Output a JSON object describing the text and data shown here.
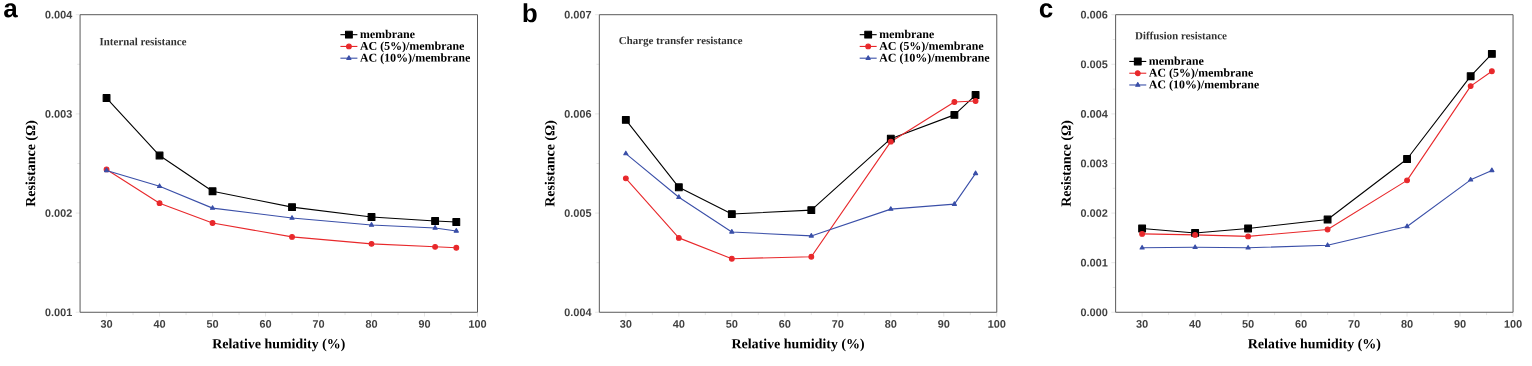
{
  "chart_data": [
    {
      "type": "line",
      "title": "a",
      "xlabel": "Relative humidity (%)",
      "ylabel": "Resistance (Ω)",
      "annotations": [
        "Internal resistance"
      ],
      "x": [
        30,
        40,
        50,
        65,
        80,
        92,
        96
      ],
      "xlim": [
        25,
        100
      ],
      "xticks": [
        30,
        40,
        50,
        60,
        70,
        80,
        90,
        100
      ],
      "ylim": [
        0.001,
        0.004
      ],
      "yticks": [
        0.001,
        0.002,
        0.003,
        0.004
      ],
      "legend": "top right",
      "series": [
        {
          "name": "membrane",
          "color": "#000000",
          "marker": "square",
          "values": [
            0.00316,
            0.00258,
            0.00222,
            0.00206,
            0.00196,
            0.00192,
            0.00191
          ]
        },
        {
          "name": "AC (5%)/membrane",
          "color": "#e8282b",
          "marker": "circle",
          "values": [
            0.00244,
            0.0021,
            0.0019,
            0.00176,
            0.00169,
            0.00166,
            0.00165
          ]
        },
        {
          "name": "AC (10%)/membrane",
          "color": "#3a4fa8",
          "marker": "triangle",
          "values": [
            0.00243,
            0.00227,
            0.00205,
            0.00195,
            0.00188,
            0.00185,
            0.00182
          ]
        }
      ]
    },
    {
      "type": "line",
      "title": "b",
      "xlabel": "Relative humidity (%)",
      "ylabel": "Resistance (Ω)",
      "annotations": [
        "Charge transfer resistance"
      ],
      "x": [
        30,
        40,
        50,
        65,
        80,
        92,
        96
      ],
      "xlim": [
        25,
        100
      ],
      "xticks": [
        30,
        40,
        50,
        60,
        70,
        80,
        90,
        100
      ],
      "ylim": [
        0.004,
        0.007
      ],
      "yticks": [
        0.004,
        0.005,
        0.006,
        0.007
      ],
      "legend": "top right",
      "series": [
        {
          "name": "membrane",
          "color": "#000000",
          "marker": "square",
          "values": [
            0.00594,
            0.00526,
            0.00499,
            0.00503,
            0.00575,
            0.00599,
            0.00619
          ]
        },
        {
          "name": "AC (5%)/membrane",
          "color": "#e8282b",
          "marker": "circle",
          "values": [
            0.00535,
            0.00475,
            0.00454,
            0.00456,
            0.00572,
            0.00612,
            0.00613
          ]
        },
        {
          "name": "AC (10%)/membrane",
          "color": "#3a4fa8",
          "marker": "triangle",
          "values": [
            0.0056,
            0.00516,
            0.00481,
            0.00477,
            0.00504,
            0.00509,
            0.0054
          ]
        }
      ]
    },
    {
      "type": "line",
      "title": "c",
      "xlabel": "Relative humidity (%)",
      "ylabel": "Resistance (Ω)",
      "annotations": [
        "Diffusion resistance"
      ],
      "x": [
        30,
        40,
        50,
        65,
        80,
        92,
        96
      ],
      "xlim": [
        25,
        100
      ],
      "xticks": [
        30,
        40,
        50,
        60,
        70,
        80,
        90,
        100
      ],
      "ylim": [
        0,
        0.006
      ],
      "yticks": [
        {
          "value": 0,
          "label": "0.000"
        },
        0.001,
        0.002,
        0.003,
        0.004,
        0.005,
        0.006
      ],
      "legend": "top left",
      "series": [
        {
          "name": "membrane",
          "color": "#000000",
          "marker": "square",
          "values": [
            0.00169,
            0.0016,
            0.00169,
            0.00187,
            0.00309,
            0.00476,
            0.00521
          ]
        },
        {
          "name": "AC (5%)/membrane",
          "color": "#e8282b",
          "marker": "circle",
          "values": [
            0.00158,
            0.00156,
            0.00153,
            0.00167,
            0.00266,
            0.00456,
            0.00486
          ]
        },
        {
          "name": "AC (10%)/membrane",
          "color": "#3a4fa8",
          "marker": "triangle",
          "values": [
            0.0013,
            0.00131,
            0.0013,
            0.00135,
            0.00173,
            0.00267,
            0.00286
          ]
        }
      ]
    }
  ]
}
